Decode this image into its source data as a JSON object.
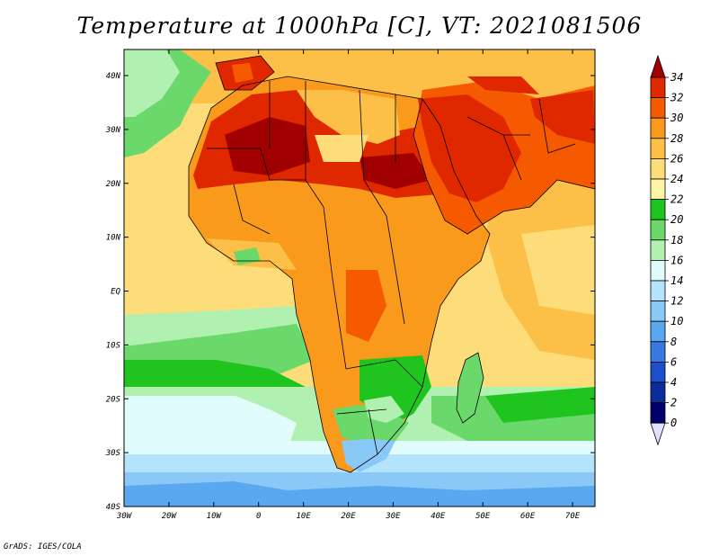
{
  "title": "Temperature at 1000hPa [C], VT: 2021081506",
  "credit": "GrADS: IGES/COLA",
  "map": {
    "lon_ticks": [
      "30W",
      "20W",
      "10W",
      "0",
      "10E",
      "20E",
      "30E",
      "40E",
      "50E",
      "60E",
      "70E"
    ],
    "lat_ticks": [
      "40N",
      "30N",
      "20N",
      "10N",
      "EQ",
      "10S",
      "20S",
      "30S",
      "40S"
    ]
  },
  "colorbar": {
    "labels": [
      "34",
      "32",
      "30",
      "28",
      "26",
      "24",
      "22",
      "20",
      "18",
      "16",
      "14",
      "12",
      "10",
      "8",
      "6",
      "4",
      "2",
      "0"
    ],
    "colors": [
      "#a00000",
      "#e02800",
      "#f55a00",
      "#f99a1c",
      "#fcc048",
      "#fddc7a",
      "#fff3a6",
      "#1fc41f",
      "#6ad86a",
      "#b0f0b0",
      "#e0fcfc",
      "#b4e4fc",
      "#8ac8f8",
      "#5aa8f0",
      "#3878e0",
      "#1c50c8",
      "#0c2c9c",
      "#000068",
      "#e0e0ff"
    ]
  }
}
